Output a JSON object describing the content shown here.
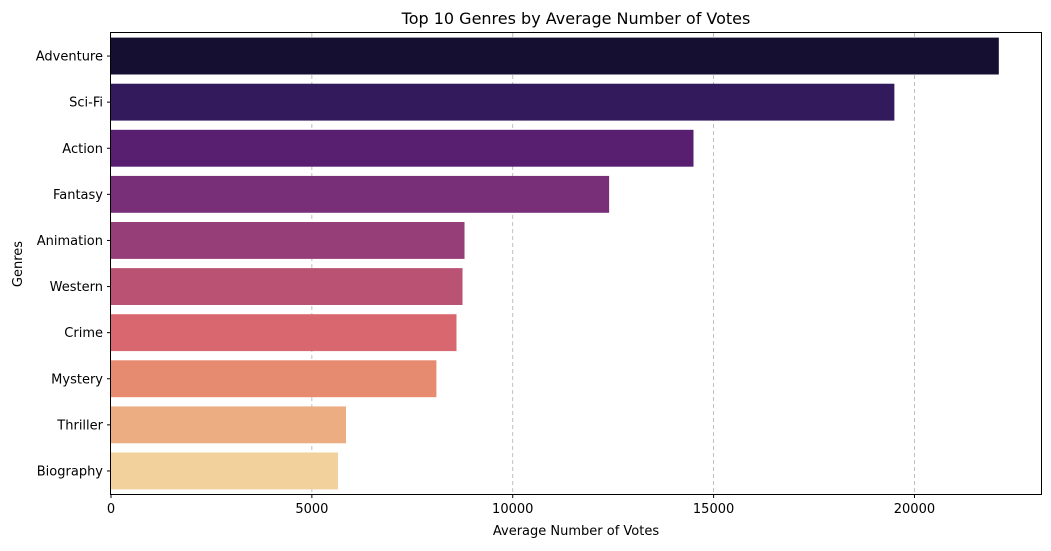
{
  "chart_data": {
    "type": "bar",
    "orientation": "horizontal",
    "title": "Top 10 Genres by Average Number of Votes",
    "xlabel": "Average Number of Votes",
    "ylabel": "Genres",
    "categories": [
      "Adventure",
      "Sci-Fi",
      "Action",
      "Fantasy",
      "Animation",
      "Western",
      "Crime",
      "Mystery",
      "Thriller",
      "Biography"
    ],
    "values": [
      22100,
      19500,
      14500,
      12400,
      8800,
      8750,
      8600,
      8100,
      5850,
      5650
    ],
    "xlim": [
      0,
      23150
    ],
    "xticks": [
      0,
      5000,
      10000,
      15000,
      20000
    ],
    "xtick_labels": [
      "0",
      "5000",
      "10000",
      "15000",
      "20000"
    ],
    "grid": "x-axis dashed",
    "legend": "none",
    "colors": [
      "#150f31",
      "#331a5d",
      "#581f71",
      "#782f77",
      "#963e78",
      "#ba5274",
      "#d9676f",
      "#e68a70",
      "#ecad83",
      "#f2d19d"
    ]
  }
}
